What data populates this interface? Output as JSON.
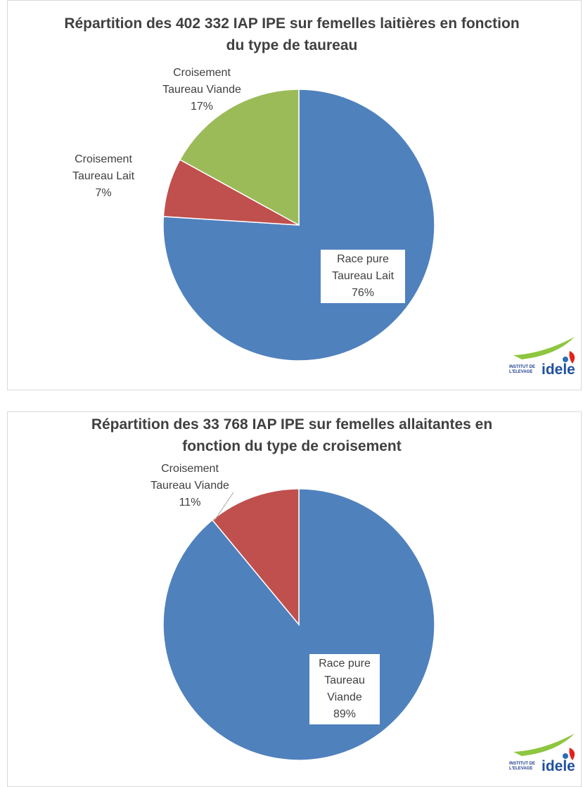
{
  "chart_data": [
    {
      "type": "pie",
      "title": "Répartition des 402 332 IAP IPE sur femelles laitières en fonction du type de taureau",
      "categories": [
        "Race pure Taureau Lait",
        "Croisement Taureau Lait",
        "Croisement Taureau Viande"
      ],
      "values": [
        76,
        7,
        17
      ],
      "value_labels": [
        "76%",
        "7%",
        "17%"
      ],
      "colors": [
        "#4f81bd",
        "#c0504d",
        "#9bbb59"
      ]
    },
    {
      "type": "pie",
      "title": "Répartition des 33 768 IAP IPE sur femelles allaitantes en fonction du type de croisement",
      "categories": [
        "Race pure Taureau Viande",
        "Croisement Taureau Viande"
      ],
      "values": [
        89,
        11
      ],
      "value_labels": [
        "89%",
        "11%"
      ],
      "colors": [
        "#4f81bd",
        "#c0504d"
      ]
    }
  ],
  "logo": [
    "INSTITUT DE",
    "L'ELEVAGE",
    "idele"
  ]
}
